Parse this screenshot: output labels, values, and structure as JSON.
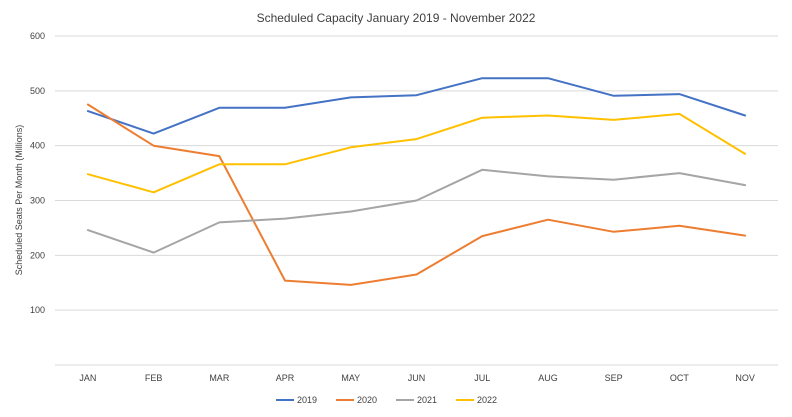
{
  "chart_data": {
    "type": "line",
    "title": "Scheduled Capacity January 2019   - November 2022",
    "xlabel": "",
    "ylabel": "Scheduled Seats Per Month (Millions)",
    "ylim": [
      0,
      600
    ],
    "yticks": [
      100,
      200,
      300,
      400,
      500,
      600
    ],
    "grid": true,
    "legend_position": "bottom",
    "categories": [
      "JAN",
      "FEB",
      "MAR",
      "APR",
      "MAY",
      "JUN",
      "JUL",
      "AUG",
      "SEP",
      "OCT",
      "NOV"
    ],
    "series": [
      {
        "name": "2019",
        "color": "#4472C4",
        "values": [
          463,
          422,
          469,
          469,
          488,
          492,
          523,
          523,
          491,
          494,
          455
        ]
      },
      {
        "name": "2020",
        "color": "#ED7D31",
        "values": [
          475,
          400,
          381,
          154,
          146,
          165,
          235,
          265,
          243,
          254,
          236
        ]
      },
      {
        "name": "2021",
        "color": "#A5A5A5",
        "values": [
          246,
          205,
          260,
          267,
          280,
          300,
          356,
          344,
          338,
          350,
          328
        ]
      },
      {
        "name": "2022",
        "color": "#FFC000",
        "values": [
          348,
          315,
          366,
          366,
          397,
          412,
          451,
          455,
          447,
          458,
          385
        ]
      }
    ]
  }
}
